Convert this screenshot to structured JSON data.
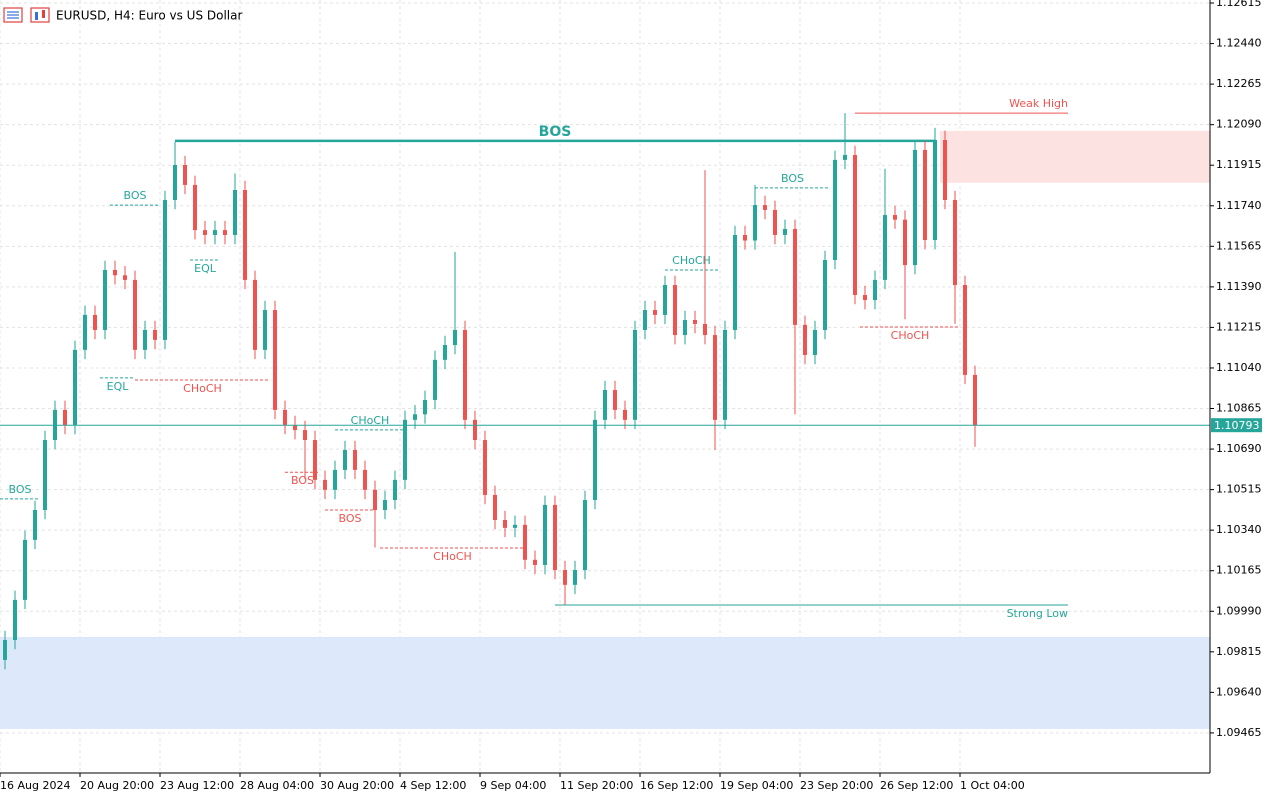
{
  "chart_data": {
    "type": "candlestick",
    "title": "EURUSD, H4:  Euro vs US Dollar",
    "up_color": "#26a69a",
    "down_color": "#ef5350",
    "grid": true,
    "xlim": [
      0,
      121
    ],
    "ylim": [
      1.09292,
      1.12628
    ],
    "xticks": [
      {
        "value": 0,
        "label": "16 Aug 2024"
      },
      {
        "value": 8,
        "label": "20 Aug 20:00"
      },
      {
        "value": 16,
        "label": "23 Aug 12:00"
      },
      {
        "value": 24,
        "label": "28 Aug 04:00"
      },
      {
        "value": 32,
        "label": "30 Aug 20:00"
      },
      {
        "value": 40,
        "label": "4 Sep 12:00"
      },
      {
        "value": 48,
        "label": "9 Sep 04:00"
      },
      {
        "value": 56,
        "label": "11 Sep 20:00"
      },
      {
        "value": 64,
        "label": "16 Sep 12:00"
      },
      {
        "value": 72,
        "label": "19 Sep 04:00"
      },
      {
        "value": 80,
        "label": "23 Sep 20:00"
      },
      {
        "value": 88,
        "label": "26 Sep 12:00"
      },
      {
        "value": 96,
        "label": "1 Oct 04:00"
      }
    ],
    "yticks": [
      {
        "value": 1.12615,
        "label": "1.12615"
      },
      {
        "value": 1.1244,
        "label": "1.12440"
      },
      {
        "value": 1.12265,
        "label": "1.12265"
      },
      {
        "value": 1.1209,
        "label": "1.12090"
      },
      {
        "value": 1.11915,
        "label": "1.11915"
      },
      {
        "value": 1.1174,
        "label": "1.11740"
      },
      {
        "value": 1.11565,
        "label": "1.11565"
      },
      {
        "value": 1.1139,
        "label": "1.11390"
      },
      {
        "value": 1.11215,
        "label": "1.11215"
      },
      {
        "value": 1.1104,
        "label": "1.11040"
      },
      {
        "value": 1.10865,
        "label": "1.10865"
      },
      {
        "value": 1.1069,
        "label": "1.10690"
      },
      {
        "value": 1.10515,
        "label": "1.10515"
      },
      {
        "value": 1.1034,
        "label": "1.10340"
      },
      {
        "value": 1.10165,
        "label": "1.10165"
      },
      {
        "value": 1.0999,
        "label": "1.09990"
      },
      {
        "value": 1.09815,
        "label": "1.09815"
      },
      {
        "value": 1.0964,
        "label": "1.09640"
      },
      {
        "value": 1.09465,
        "label": "1.09465"
      }
    ],
    "open": [
      1.0978,
      1.09866,
      1.10039,
      1.10298,
      1.10427,
      1.10729,
      1.10859,
      1.10794,
      1.11118,
      1.11269,
      1.11204,
      1.11463,
      1.1144,
      1.1142,
      1.11118,
      1.11204,
      1.11161,
      1.11765,
      1.11916,
      1.1183,
      1.11635,
      1.11614,
      1.11635,
      1.11614,
      1.11808,
      1.1142,
      1.11118,
      1.1129,
      1.10859,
      1.10794,
      1.10772,
      1.10729,
      1.10557,
      1.10514,
      1.106,
      1.10686,
      1.106,
      1.10514,
      1.10427,
      1.1047,
      1.10557,
      1.10816,
      1.1084,
      1.10902,
      1.11075,
      1.11139,
      1.11204,
      1.10816,
      1.10729,
      1.10492,
      1.10384,
      1.1035,
      1.10363,
      1.10212,
      1.1019,
      1.10449,
      1.10168,
      1.10104,
      1.10168,
      1.1047,
      1.10816,
      1.10945,
      1.10859,
      1.10816,
      1.11204,
      1.1129,
      1.11269,
      1.11398,
      1.11182,
      1.11247,
      1.1123,
      1.11182,
      1.10816,
      1.11204,
      1.11614,
      1.1159,
      1.11743,
      1.11722,
      1.11614,
      1.1164,
      1.11226,
      1.11096,
      1.11204,
      1.11506,
      1.11938,
      1.11959,
      1.11355,
      1.11333,
      1.1142,
      1.117,
      1.1168,
      1.11484,
      1.11981,
      1.11592,
      1.12024,
      1.11765,
      1.11398,
      1.1101
    ],
    "high": [
      1.09906,
      1.10079,
      1.10338,
      1.10467,
      1.10769,
      1.10899,
      1.10899,
      1.11158,
      1.11309,
      1.11309,
      1.11503,
      1.11503,
      1.1148,
      1.1146,
      1.11244,
      1.11244,
      1.11805,
      1.12015,
      1.11956,
      1.1187,
      1.11675,
      1.11675,
      1.11675,
      1.1188,
      1.11848,
      1.1146,
      1.1133,
      1.1133,
      1.10899,
      1.10834,
      1.10812,
      1.10769,
      1.10597,
      1.1064,
      1.10726,
      1.10726,
      1.1064,
      1.10554,
      1.1051,
      1.10597,
      1.10856,
      1.1088,
      1.10942,
      1.11115,
      1.11179,
      1.11541,
      1.11244,
      1.10856,
      1.10769,
      1.10532,
      1.10424,
      1.10403,
      1.10403,
      1.10252,
      1.10489,
      1.10489,
      1.10208,
      1.10208,
      1.1051,
      1.10856,
      1.10985,
      1.10985,
      1.10899,
      1.11244,
      1.1133,
      1.1133,
      1.11438,
      1.11438,
      1.11287,
      1.11287,
      1.11894,
      1.11222,
      1.11244,
      1.11654,
      1.11654,
      1.1183,
      1.11783,
      1.11762,
      1.1168,
      1.1168,
      1.11266,
      1.11244,
      1.11546,
      1.11978,
      1.1214,
      1.11999,
      1.11395,
      1.1146,
      1.119,
      1.1174,
      1.1172,
      1.12021,
      1.12021,
      1.12076,
      1.12064,
      1.11805,
      1.11438,
      1.1105
    ],
    "low": [
      1.0974,
      1.09826,
      1.09999,
      1.10258,
      1.10387,
      1.10689,
      1.10754,
      1.10754,
      1.11078,
      1.11164,
      1.11164,
      1.114,
      1.1138,
      1.11078,
      1.11078,
      1.11121,
      1.11121,
      1.11725,
      1.1179,
      1.11595,
      1.11574,
      1.11574,
      1.11574,
      1.11574,
      1.1138,
      1.11078,
      1.11078,
      1.10819,
      1.10754,
      1.10732,
      1.1056,
      1.10517,
      1.10474,
      1.10474,
      1.1056,
      1.1056,
      1.10474,
      1.10265,
      1.10387,
      1.1043,
      1.10517,
      1.10776,
      1.108,
      1.10862,
      1.11035,
      1.11099,
      1.10776,
      1.10689,
      1.10452,
      1.10344,
      1.1031,
      1.1031,
      1.10172,
      1.1015,
      1.1015,
      1.10128,
      1.10017,
      1.10064,
      1.10128,
      1.1043,
      1.10776,
      1.10819,
      1.10776,
      1.10776,
      1.11164,
      1.11229,
      1.11229,
      1.11142,
      1.11142,
      1.1119,
      1.11142,
      1.10686,
      1.10776,
      1.11164,
      1.1155,
      1.1155,
      1.11682,
      1.11574,
      1.11574,
      1.1084,
      1.11056,
      1.11056,
      1.11164,
      1.11466,
      1.11898,
      1.11315,
      1.11293,
      1.11293,
      1.1138,
      1.1164,
      1.1125,
      1.11444,
      1.11552,
      1.11552,
      1.11725,
      1.1123,
      1.1097,
      1.107
    ],
    "close": [
      1.09866,
      1.10039,
      1.10298,
      1.10427,
      1.10729,
      1.10859,
      1.10794,
      1.11118,
      1.11269,
      1.11204,
      1.11463,
      1.1144,
      1.1142,
      1.11118,
      1.11204,
      1.11161,
      1.11765,
      1.11916,
      1.1183,
      1.11635,
      1.11614,
      1.11635,
      1.11614,
      1.11808,
      1.1142,
      1.11118,
      1.1129,
      1.10859,
      1.10794,
      1.10772,
      1.10729,
      1.10557,
      1.10514,
      1.106,
      1.10686,
      1.106,
      1.10514,
      1.10427,
      1.1047,
      1.10557,
      1.10816,
      1.1084,
      1.10902,
      1.11075,
      1.11139,
      1.11204,
      1.10816,
      1.10729,
      1.10492,
      1.10384,
      1.1035,
      1.10363,
      1.10212,
      1.1019,
      1.10449,
      1.10168,
      1.10104,
      1.10168,
      1.1047,
      1.10816,
      1.10945,
      1.10859,
      1.10816,
      1.11204,
      1.1129,
      1.11269,
      1.11398,
      1.11182,
      1.11247,
      1.1123,
      1.11182,
      1.10816,
      1.11204,
      1.11614,
      1.1159,
      1.11743,
      1.11722,
      1.11614,
      1.1164,
      1.11226,
      1.11096,
      1.11204,
      1.11506,
      1.11938,
      1.11959,
      1.11355,
      1.11333,
      1.1142,
      1.117,
      1.1168,
      1.11484,
      1.11981,
      1.11592,
      1.12024,
      1.11765,
      1.11398,
      1.1101,
      1.10793
    ],
    "zones": [
      {
        "top": 1.12063,
        "bottom": 1.11839,
        "from": 94,
        "color": "#fde2e2"
      },
      {
        "top": 1.09879,
        "bottom": 1.09482,
        "from": 0,
        "color": "#dde9fb"
      }
    ],
    "annotations": [
      {
        "label": "BOS",
        "level": 1.1202,
        "from": 17.5,
        "to": 93.5,
        "color": "#26a69a",
        "style": "major",
        "label_pos": "above"
      },
      {
        "label": "BOS",
        "level": 1.11743,
        "from": 11,
        "to": 16,
        "color": "#26a69a",
        "style": "dashed",
        "label_pos": "above"
      },
      {
        "label": "EQL",
        "level": 1.11506,
        "from": 19,
        "to": 22,
        "color": "#26a69a",
        "style": "dashed",
        "label_pos": "below"
      },
      {
        "label": "EQL",
        "level": 1.10997,
        "from": 10,
        "to": 13.5,
        "color": "#26a69a",
        "style": "dashed",
        "label_pos": "below"
      },
      {
        "label": "CHoCH",
        "level": 1.10988,
        "from": 13.5,
        "to": 27,
        "color": "#ef5350",
        "style": "dashed",
        "label_pos": "below"
      },
      {
        "label": "BOS",
        "level": 1.10475,
        "from": 0,
        "to": 4,
        "color": "#26a69a",
        "style": "dashed",
        "label_pos": "above"
      },
      {
        "label": "CHoCH",
        "level": 1.10773,
        "from": 33.5,
        "to": 40.5,
        "color": "#26a69a",
        "style": "dashed",
        "label_pos": "above"
      },
      {
        "label": "BOS",
        "level": 1.1059,
        "from": 28.5,
        "to": 32,
        "color": "#ef5350",
        "style": "dashed",
        "label_pos": "below"
      },
      {
        "label": "BOS",
        "level": 1.10427,
        "from": 32.5,
        "to": 37.5,
        "color": "#ef5350",
        "style": "dashed",
        "label_pos": "below"
      },
      {
        "label": "CHoCH",
        "level": 1.10263,
        "from": 38,
        "to": 52.5,
        "color": "#ef5350",
        "style": "dashed",
        "label_pos": "below"
      },
      {
        "label": "CHoCH",
        "level": 1.11463,
        "from": 66.5,
        "to": 71.8,
        "color": "#26a69a",
        "style": "dashed",
        "label_pos": "above"
      },
      {
        "label": "BOS",
        "level": 1.11817,
        "from": 75.5,
        "to": 83,
        "color": "#26a69a",
        "style": "dashed",
        "label_pos": "above"
      },
      {
        "label": "CHoCH",
        "level": 1.11217,
        "from": 86,
        "to": 96,
        "color": "#ef5350",
        "style": "dashed",
        "label_pos": "below"
      },
      {
        "label": "Weak High",
        "level": 1.1214,
        "from": 85.5,
        "to": 106.8,
        "color": "#ef5350",
        "style": "solid",
        "label_pos": "end-above"
      },
      {
        "label": "Strong Low",
        "level": 1.10017,
        "from": 55.5,
        "to": 106.8,
        "color": "#26a69a",
        "style": "solid",
        "label_pos": "end-below"
      }
    ]
  }
}
